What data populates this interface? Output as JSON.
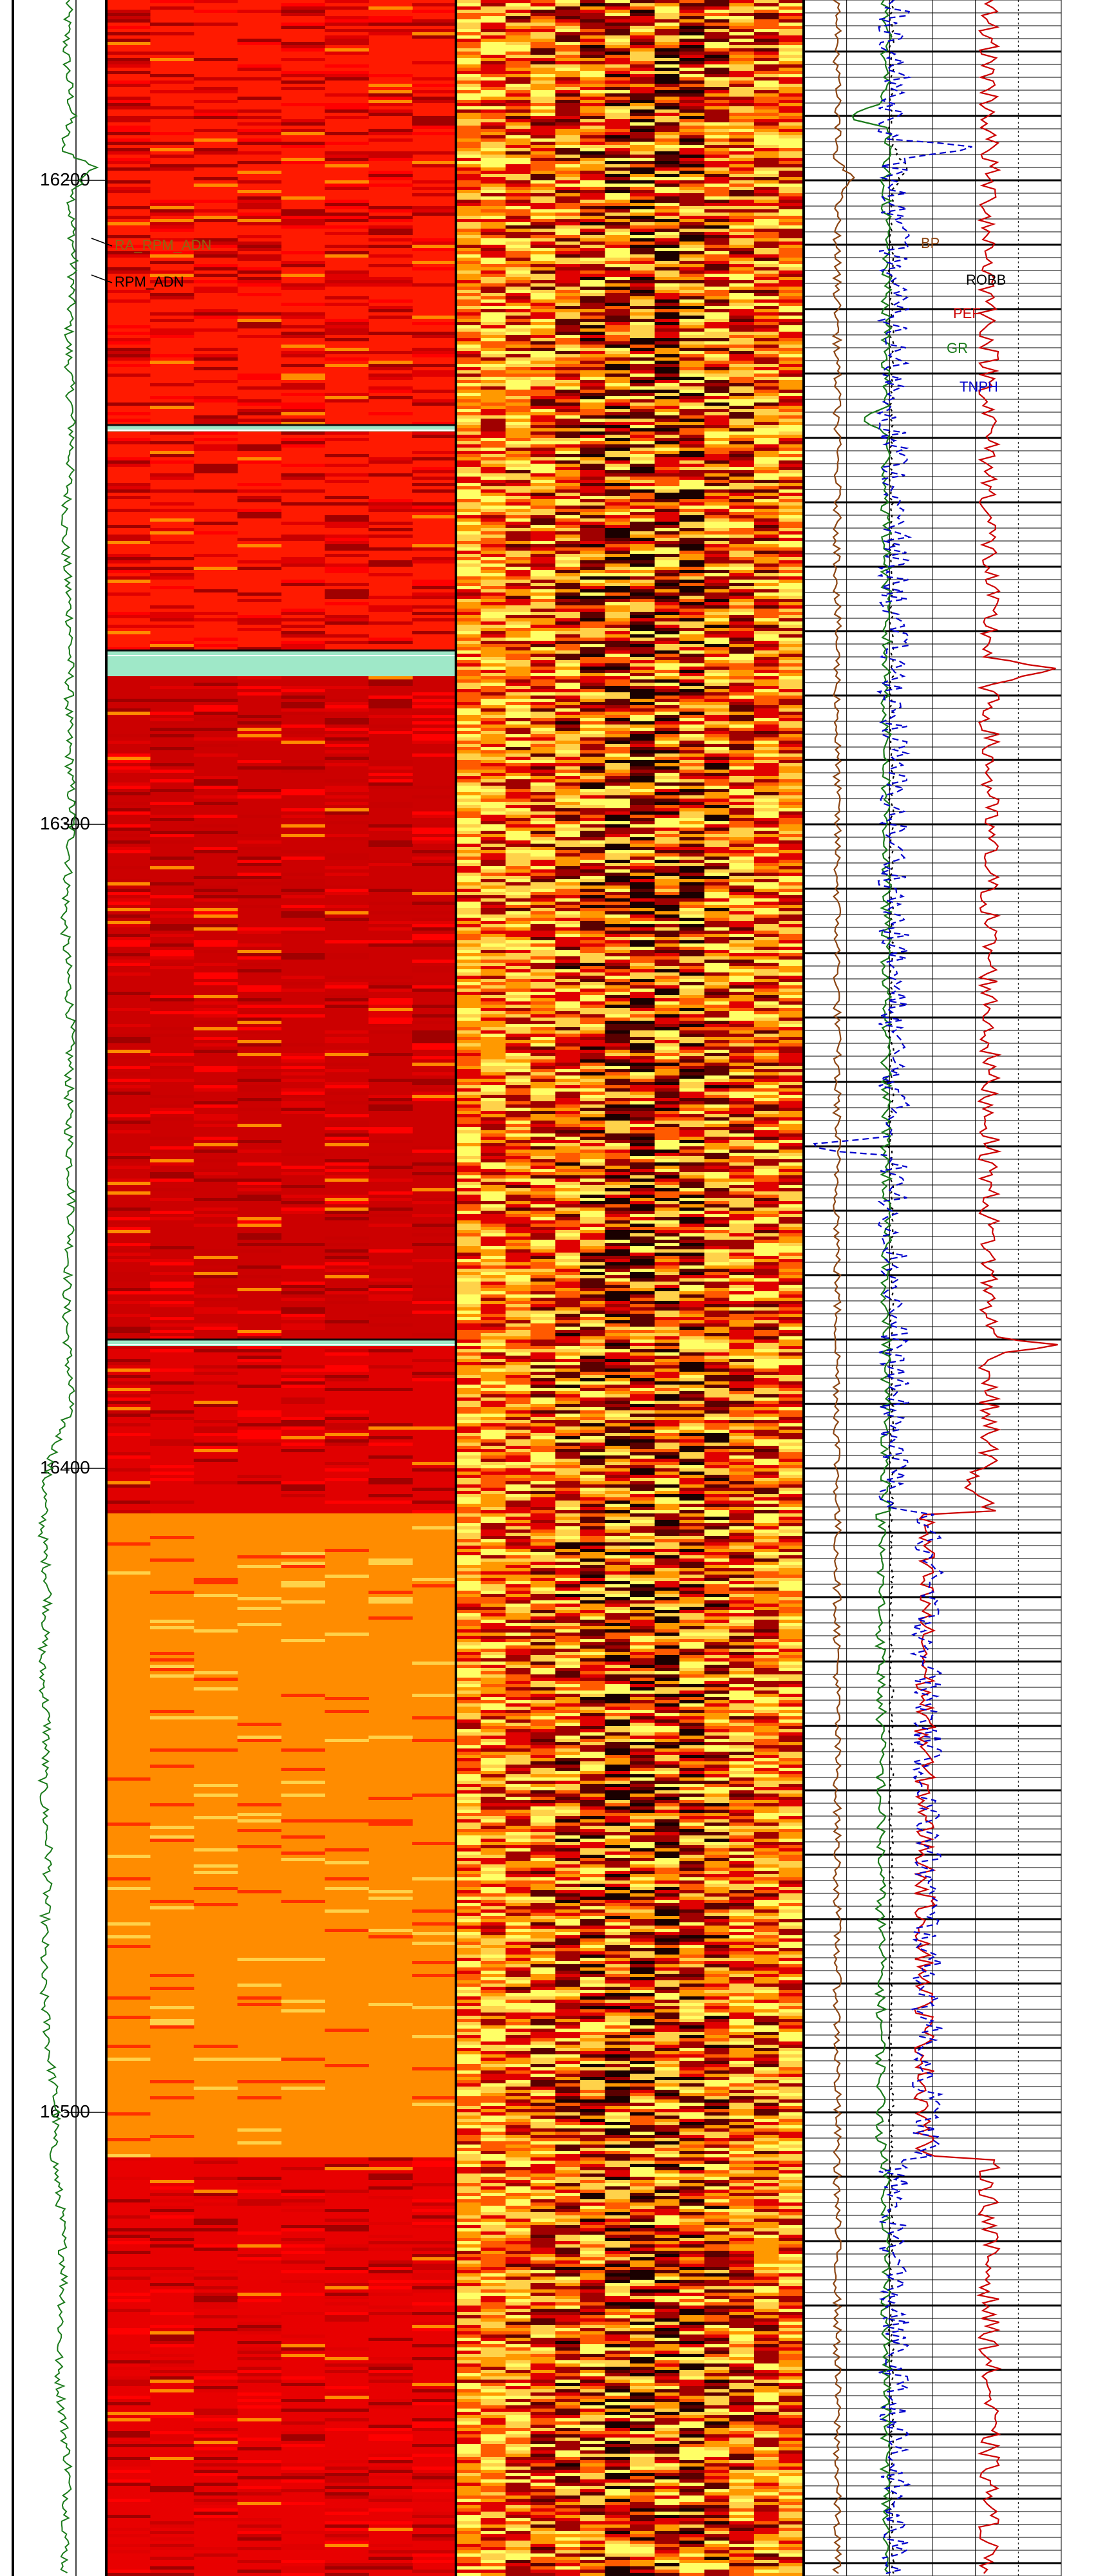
{
  "chart_data": {
    "type": "heatmap",
    "depth_range": [
      16172,
      16572
    ],
    "depth_ticks": [
      16200,
      16300,
      16400,
      16500
    ],
    "depth_tick_labels": [
      "16200",
      "16300",
      "16400",
      "16500"
    ],
    "gamma_curve": {
      "color": "#1a7a1a",
      "value_range": [
        0,
        1
      ],
      "points": [
        [
          16172,
          0.55
        ],
        [
          16180,
          0.52
        ],
        [
          16190,
          0.6
        ],
        [
          16195,
          0.45
        ],
        [
          16198,
          0.9
        ],
        [
          16200,
          0.7
        ],
        [
          16204,
          0.58
        ],
        [
          16212,
          0.62
        ],
        [
          16225,
          0.55
        ],
        [
          16240,
          0.6
        ],
        [
          16255,
          0.5
        ],
        [
          16270,
          0.58
        ],
        [
          16285,
          0.55
        ],
        [
          16300,
          0.6
        ],
        [
          16315,
          0.5
        ],
        [
          16330,
          0.58
        ],
        [
          16345,
          0.55
        ],
        [
          16360,
          0.6
        ],
        [
          16375,
          0.52
        ],
        [
          16390,
          0.58
        ],
        [
          16398,
          0.35
        ],
        [
          16402,
          0.25
        ],
        [
          16410,
          0.22
        ],
        [
          16420,
          0.3
        ],
        [
          16430,
          0.2
        ],
        [
          16440,
          0.28
        ],
        [
          16450,
          0.22
        ],
        [
          16460,
          0.3
        ],
        [
          16470,
          0.25
        ],
        [
          16480,
          0.22
        ],
        [
          16490,
          0.3
        ],
        [
          16500,
          0.4
        ],
        [
          16505,
          0.35
        ],
        [
          16515,
          0.45
        ],
        [
          16525,
          0.5
        ],
        [
          16540,
          0.42
        ],
        [
          16555,
          0.55
        ],
        [
          16572,
          0.5
        ]
      ]
    },
    "image_tracks": [
      {
        "name": "",
        "palette": [
          "#ff0000",
          "#e00000",
          "#c80000",
          "#a00000",
          "#ff6000",
          "#ff8c00",
          "#ffd24a"
        ],
        "zones": [
          {
            "from": 16172,
            "to": 16238,
            "base": "#ff1a00"
          },
          {
            "from": 16238,
            "to": 16239,
            "base": "#9fe8c8"
          },
          {
            "from": 16239,
            "to": 16273,
            "base": "#ff1a00"
          },
          {
            "from": 16273,
            "to": 16277,
            "base": "#9fe8c8"
          },
          {
            "from": 16277,
            "to": 16380,
            "base": "#cc0000"
          },
          {
            "from": 16380,
            "to": 16381,
            "base": "#9fe8c8"
          },
          {
            "from": 16381,
            "to": 16407,
            "base": "#e00000"
          },
          {
            "from": 16407,
            "to": 16507,
            "base": "#ff8c00"
          },
          {
            "from": 16507,
            "to": 16572,
            "base": "#e80000"
          }
        ]
      },
      {
        "name": "",
        "palette": [
          "#ffff66",
          "#ffd24a",
          "#ff9900",
          "#ff5a00",
          "#e00000",
          "#a00000",
          "#5a0000",
          "#1a0000"
        ],
        "zones": [
          {
            "from": 16172,
            "to": 16572,
            "base": "#ffb000"
          }
        ]
      }
    ],
    "curves": [
      {
        "name": "BP",
        "label": "BP",
        "color": "#8b4513"
      },
      {
        "name": "ROBB",
        "label": "ROBB",
        "color": "#000000"
      },
      {
        "name": "PEF",
        "label": "PEF",
        "color": "#cc0000"
      },
      {
        "name": "GR",
        "label": "GR",
        "color": "#1a7a1a"
      },
      {
        "name": "TNPH",
        "label": "TNPH",
        "color": "#0000cc"
      }
    ],
    "annotations": [
      {
        "label": "RA_RPM_ADN",
        "color": "#8b6914"
      },
      {
        "label": "RPM_ADN",
        "color": "#000000"
      }
    ]
  }
}
